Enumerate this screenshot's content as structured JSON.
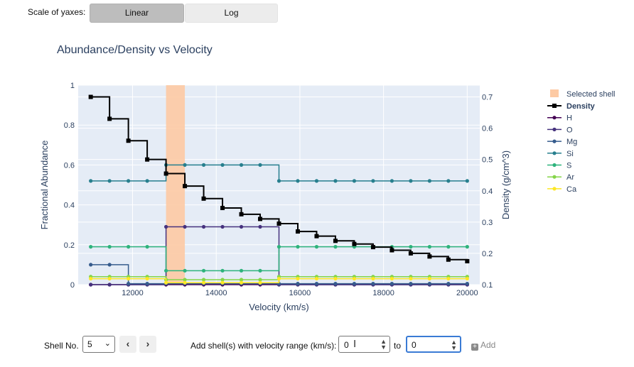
{
  "controls": {
    "scale_label": "Scale of yaxes:",
    "linear_label": "Linear",
    "log_label": "Log"
  },
  "plot": {
    "title": "Abundance/Density vs Velocity"
  },
  "shell": {
    "label": "Shell No.",
    "value": "5",
    "prev_icon": "chevron-left-icon",
    "next_icon": "chevron-right-icon"
  },
  "add_shell": {
    "label": "Add shell(s) with velocity range (km/s):",
    "from_value": "0",
    "to_label": "to",
    "to_value": "0",
    "button_label": "Add",
    "button_icon": "plus-square-icon"
  },
  "colors": {
    "plot_bg": "#e5ecf6",
    "selected_shell": "#fdcaa4",
    "density": "#000000",
    "H": "#440154",
    "O": "#46327e",
    "Mg": "#365c8d",
    "Si": "#277f8e",
    "S": "#2eb37c",
    "Ar": "#85d54a",
    "Ca": "#fde725"
  },
  "chart_data": {
    "type": "line",
    "title": "Abundance/Density vs Velocity",
    "xlabel": "Velocity (km/s)",
    "ylabel": "Fractional Abundance",
    "y2label": "Density (g/cm^3)",
    "xlim": [
      10700,
      20300
    ],
    "ylim": [
      0,
      1
    ],
    "y2lim": [
      0.1,
      0.7375
    ],
    "x_ticks": [
      "12000",
      "14000",
      "16000",
      "18000",
      "20000"
    ],
    "y_ticks": [
      "0",
      "0.2",
      "0.4",
      "0.6",
      "0.8",
      "1"
    ],
    "y2_ticks": [
      "0.1",
      "0.2",
      "0.3",
      "0.4",
      "0.5",
      "0.6",
      "0.7"
    ],
    "grid": true,
    "legend_position": "right",
    "selected_shell": [
      12800,
      13250
    ],
    "x": [
      11000,
      11450,
      11900,
      12350,
      12800,
      13250,
      13700,
      14150,
      14600,
      15050,
      15500,
      15950,
      16400,
      16850,
      17300,
      17750,
      18200,
      18650,
      19100,
      19550,
      20000
    ],
    "series": [
      {
        "name": "Selected shell",
        "kind": "band"
      },
      {
        "name": "Density",
        "axis": "y2",
        "values": [
          0.7,
          0.63,
          0.56,
          0.5,
          0.455,
          0.415,
          0.375,
          0.345,
          0.325,
          0.31,
          0.295,
          0.27,
          0.255,
          0.24,
          0.23,
          0.22,
          0.21,
          0.2,
          0.19,
          0.18,
          0.175
        ]
      },
      {
        "name": "H",
        "axis": "y",
        "values": [
          0,
          0,
          0,
          0,
          0,
          0,
          0,
          0,
          0,
          0,
          0,
          0,
          0,
          0,
          0,
          0,
          0,
          0,
          0,
          0,
          0
        ]
      },
      {
        "name": "O",
        "axis": "y",
        "values": [
          0,
          0,
          0,
          0,
          0.29,
          0.29,
          0.29,
          0.29,
          0.29,
          0.29,
          0,
          0,
          0,
          0,
          0,
          0,
          0,
          0,
          0,
          0,
          0
        ]
      },
      {
        "name": "Mg",
        "axis": "y",
        "values": [
          0.1,
          0.1,
          0.005,
          0.005,
          0.005,
          0.005,
          0.005,
          0.005,
          0.005,
          0.005,
          0.005,
          0.005,
          0.005,
          0.005,
          0.005,
          0.005,
          0.005,
          0.005,
          0.005,
          0.005,
          0.005
        ]
      },
      {
        "name": "Si",
        "axis": "y",
        "values": [
          0.52,
          0.52,
          0.52,
          0.52,
          0.6,
          0.6,
          0.6,
          0.6,
          0.6,
          0.6,
          0.52,
          0.52,
          0.52,
          0.52,
          0.52,
          0.52,
          0.52,
          0.52,
          0.52,
          0.52,
          0.52
        ]
      },
      {
        "name": "S",
        "axis": "y",
        "values": [
          0.19,
          0.19,
          0.19,
          0.19,
          0.07,
          0.07,
          0.07,
          0.07,
          0.07,
          0.07,
          0.19,
          0.19,
          0.19,
          0.19,
          0.19,
          0.19,
          0.19,
          0.19,
          0.19,
          0.19,
          0.19
        ]
      },
      {
        "name": "Ar",
        "axis": "y",
        "values": [
          0.04,
          0.04,
          0.04,
          0.04,
          0.025,
          0.025,
          0.025,
          0.025,
          0.025,
          0.025,
          0.04,
          0.04,
          0.04,
          0.04,
          0.04,
          0.04,
          0.04,
          0.04,
          0.04,
          0.04,
          0.04
        ]
      },
      {
        "name": "Ca",
        "axis": "y",
        "values": [
          0.03,
          0.03,
          0.03,
          0.03,
          0.01,
          0.01,
          0.01,
          0.01,
          0.01,
          0.01,
          0.03,
          0.03,
          0.03,
          0.03,
          0.03,
          0.03,
          0.03,
          0.03,
          0.03,
          0.03,
          0.03
        ]
      }
    ]
  }
}
